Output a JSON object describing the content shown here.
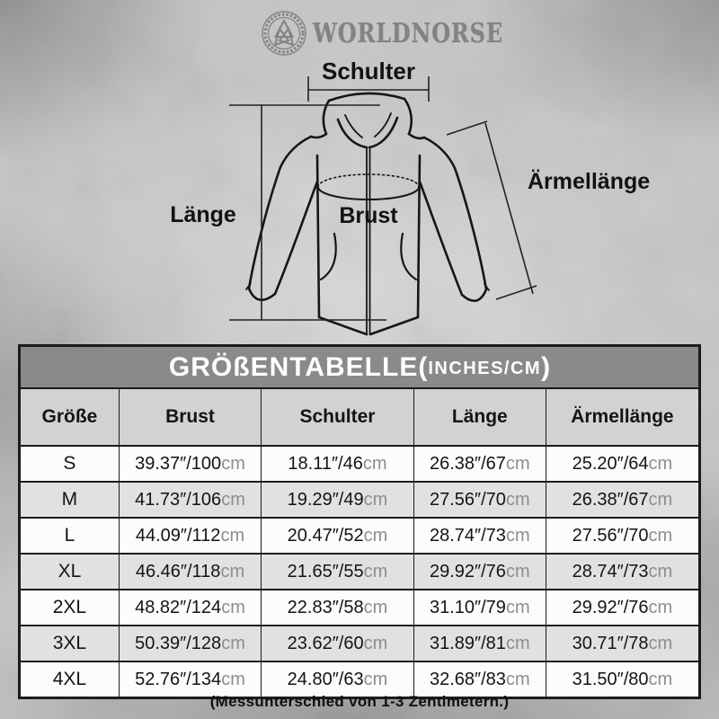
{
  "brand": {
    "name": "WORLDNORSE",
    "logo_icon": "valknut-circle-icon"
  },
  "diagram": {
    "labels": {
      "shoulder": "Schulter",
      "length": "Länge",
      "chest": "Brust",
      "sleeve": "Ärmellänge"
    }
  },
  "size_table": {
    "title_main": "GRÖßENTABELLE(",
    "title_sub": "INCHES/CM",
    "title_close": ")",
    "columns": [
      "Größe",
      "Brust",
      "Schulter",
      "Länge",
      "Ärmellänge"
    ],
    "rows": [
      {
        "size": "S",
        "cells": [
          {
            "value": "39.37″/100",
            "unit": "cm"
          },
          {
            "value": "18.11″/46",
            "unit": "cm"
          },
          {
            "value": "26.38″/67",
            "unit": "cm"
          },
          {
            "value": "25.20″/64",
            "unit": "cm"
          }
        ]
      },
      {
        "size": "M",
        "cells": [
          {
            "value": "41.73″/106",
            "unit": "cm"
          },
          {
            "value": "19.29″/49",
            "unit": "cm"
          },
          {
            "value": "27.56″/70",
            "unit": "cm"
          },
          {
            "value": "26.38″/67",
            "unit": "cm"
          }
        ]
      },
      {
        "size": "L",
        "cells": [
          {
            "value": "44.09″/112",
            "unit": "cm"
          },
          {
            "value": "20.47″/52",
            "unit": "cm"
          },
          {
            "value": "28.74″/73",
            "unit": "cm"
          },
          {
            "value": "27.56″/70",
            "unit": "cm"
          }
        ]
      },
      {
        "size": "XL",
        "cells": [
          {
            "value": "46.46″/118",
            "unit": "cm"
          },
          {
            "value": "21.65″/55",
            "unit": "cm"
          },
          {
            "value": "29.92″/76",
            "unit": "cm"
          },
          {
            "value": "28.74″/73",
            "unit": "cm"
          }
        ]
      },
      {
        "size": "2XL",
        "cells": [
          {
            "value": "48.82″/124",
            "unit": "cm"
          },
          {
            "value": "22.83″/58",
            "unit": "cm"
          },
          {
            "value": "31.10″/79",
            "unit": "cm"
          },
          {
            "value": "29.92″/76",
            "unit": "cm"
          }
        ]
      },
      {
        "size": "3XL",
        "cells": [
          {
            "value": "50.39″/128",
            "unit": "cm"
          },
          {
            "value": "23.62″/60",
            "unit": "cm"
          },
          {
            "value": "31.89″/81",
            "unit": "cm"
          },
          {
            "value": "30.71″/78",
            "unit": "cm"
          }
        ]
      },
      {
        "size": "4XL",
        "cells": [
          {
            "value": "52.76″/134",
            "unit": "cm"
          },
          {
            "value": "24.80″/63",
            "unit": "cm"
          },
          {
            "value": "32.68″/83",
            "unit": "cm"
          },
          {
            "value": "31.50″/80",
            "unit": "cm"
          }
        ]
      }
    ]
  },
  "footer": {
    "note": "(Messunterschied von 1-3 Zentimetern.)"
  },
  "colors": {
    "title_bar": "#8a8a8a",
    "header_row": "#d2d2d2",
    "row_alt": "#e1e1e1",
    "row_base": "#fcfcfc",
    "border": "#1b1b1b",
    "unit_text": "#8d8d8d",
    "logo_gray": "#838383",
    "background": "#c6c6c6"
  },
  "chart_data": {
    "type": "table",
    "title": "GRÖßENTABELLE(INCHES/CM)",
    "columns": [
      "Größe",
      "Brust",
      "Schulter",
      "Länge",
      "Ärmellänge"
    ],
    "rows": [
      [
        "S",
        "39.37″/100cm",
        "18.11″/46cm",
        "26.38″/67cm",
        "25.20″/64cm"
      ],
      [
        "M",
        "41.73″/106cm",
        "19.29″/49cm",
        "27.56″/70cm",
        "26.38″/67cm"
      ],
      [
        "L",
        "44.09″/112cm",
        "20.47″/52cm",
        "28.74″/73cm",
        "27.56″/70cm"
      ],
      [
        "XL",
        "46.46″/118cm",
        "21.65″/55cm",
        "29.92″/76cm",
        "28.74″/73cm"
      ],
      [
        "2XL",
        "48.82″/124cm",
        "22.83″/58cm",
        "31.10″/79cm",
        "29.92″/76cm"
      ],
      [
        "3XL",
        "50.39″/128cm",
        "23.62″/60cm",
        "31.89″/81cm",
        "30.71″/78cm"
      ],
      [
        "4XL",
        "52.76″/134cm",
        "24.80″/63cm",
        "32.68″/83cm",
        "31.50″/80cm"
      ]
    ],
    "annotation": "(Messunterschied von 1-3 Zentimetern.)"
  }
}
